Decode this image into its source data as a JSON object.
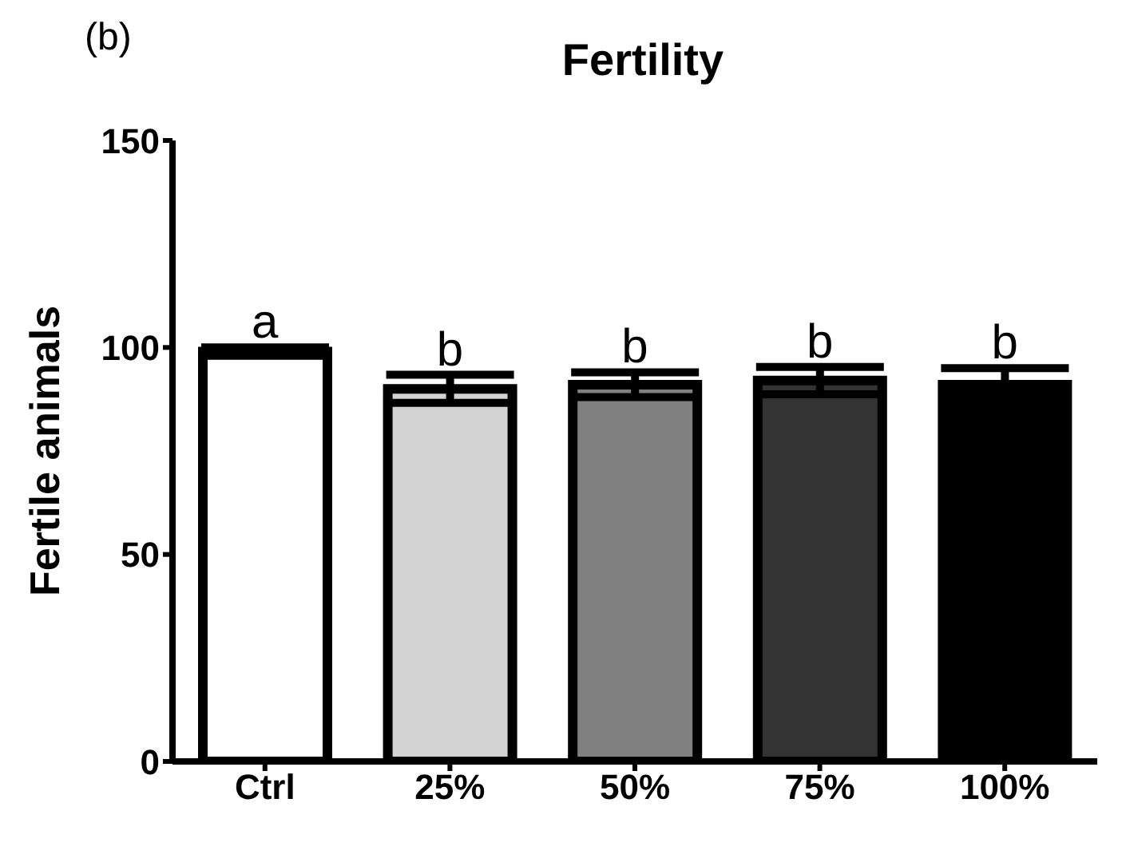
{
  "chart_data": {
    "type": "bar",
    "title": "Fertility",
    "ylabel": "Fertile animals",
    "categories": [
      "Ctrl",
      "25%",
      "50%",
      "75%",
      "100%"
    ],
    "values": [
      99,
      90,
      91,
      92,
      91
    ],
    "errors": [
      1,
      3.4,
      3,
      3.3,
      4
    ],
    "colors": [
      "#ffffff",
      "#d3d3d3",
      "#808080",
      "#333333",
      "#000000"
    ],
    "ylim": [
      0,
      150
    ],
    "yticks": [
      0,
      50,
      100,
      150
    ],
    "grid": false,
    "annotations": [
      "(b)",
      {
        "text": "a",
        "x": "Ctrl",
        "y": 100
      },
      {
        "text": "b",
        "x": "25%",
        "y": 93.4
      },
      {
        "text": "b",
        "x": "50%",
        "y": 94
      },
      {
        "text": "b",
        "x": "75%",
        "y": 95.3
      },
      {
        "text": "b",
        "x": "100%",
        "y": 95
      }
    ]
  }
}
